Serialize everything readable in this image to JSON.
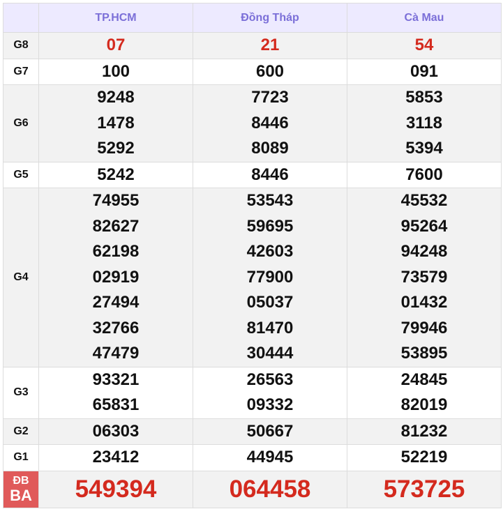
{
  "header": {
    "provinces": [
      "TP.HCM",
      "Đồng Tháp",
      "Cà Mau"
    ]
  },
  "prizes": [
    {
      "label": "G8",
      "values": [
        [
          "07"
        ],
        [
          "21"
        ],
        [
          "54"
        ]
      ],
      "highlight": true
    },
    {
      "label": "G7",
      "values": [
        [
          "100"
        ],
        [
          "600"
        ],
        [
          "091"
        ]
      ]
    },
    {
      "label": "G6",
      "values": [
        [
          "9248",
          "1478",
          "5292"
        ],
        [
          "7723",
          "8446",
          "8089"
        ],
        [
          "5853",
          "3118",
          "5394"
        ]
      ]
    },
    {
      "label": "G5",
      "values": [
        [
          "5242"
        ],
        [
          "8446"
        ],
        [
          "7600"
        ]
      ]
    },
    {
      "label": "G4",
      "values": [
        [
          "74955",
          "82627",
          "62198",
          "02919",
          "27494",
          "32766",
          "47479"
        ],
        [
          "53543",
          "59695",
          "42603",
          "77900",
          "05037",
          "81470",
          "30444"
        ],
        [
          "45532",
          "95264",
          "94248",
          "73579",
          "01432",
          "79946",
          "53895"
        ]
      ]
    },
    {
      "label": "G3",
      "values": [
        [
          "93321",
          "65831"
        ],
        [
          "26563",
          "09332"
        ],
        [
          "24845",
          "82019"
        ]
      ]
    },
    {
      "label": "G2",
      "values": [
        [
          "06303"
        ],
        [
          "50667"
        ],
        [
          "81232"
        ]
      ]
    },
    {
      "label": "G1",
      "values": [
        [
          "23412"
        ],
        [
          "44945"
        ],
        [
          "52219"
        ]
      ]
    },
    {
      "label": "ĐB",
      "values": [
        [
          "549394"
        ],
        [
          "064458"
        ],
        [
          "573725"
        ]
      ],
      "special": true
    }
  ],
  "watermark": "BAOQ...",
  "colors": {
    "accent": "#7b6fd8",
    "prize_red": "#d42a1e",
    "special_label_bg": "#e05a5a"
  }
}
